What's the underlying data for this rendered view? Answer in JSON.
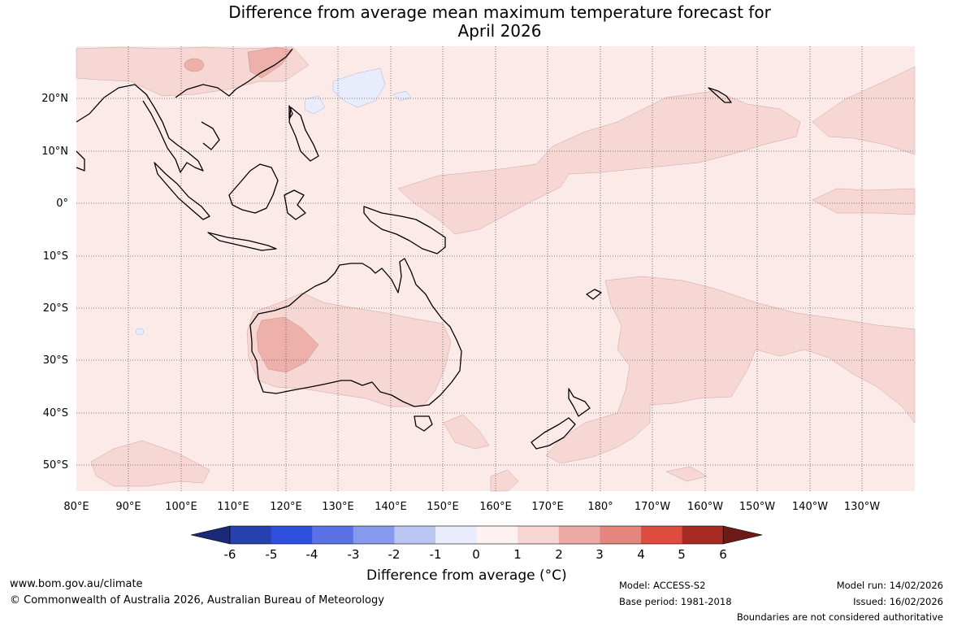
{
  "title": {
    "line1": "Difference from average mean maximum temperature forecast for",
    "line2": "April 2026"
  },
  "map": {
    "lat_labels": [
      "20°N",
      "10°N",
      "0°",
      "10°S",
      "20°S",
      "30°S",
      "40°S",
      "50°S"
    ],
    "lon_labels": [
      "80°E",
      "90°E",
      "100°E",
      "110°E",
      "120°E",
      "130°E",
      "140°E",
      "150°E",
      "160°E",
      "170°E",
      "180°",
      "170°W",
      "160°W",
      "150°W",
      "140°W",
      "130°W"
    ],
    "region": "Australia and surrounding Indo-Pacific",
    "colors": {
      "bin_0_1": "#fbeae8",
      "bin_1_2": "#f7d7d4",
      "bin_2_3": "#eeb0aa",
      "bin_m1_0": "#e8ecfb",
      "land_outline": "#000000"
    }
  },
  "colorbar": {
    "ticks": [
      "-6",
      "-5",
      "-4",
      "-3",
      "-2",
      "-1",
      "0",
      "1",
      "2",
      "3",
      "4",
      "5",
      "6"
    ],
    "colors": [
      "#1b2a78",
      "#2640b0",
      "#2f50de",
      "#5b72e6",
      "#8799ec",
      "#bcc6f3",
      "#e9ecfb",
      "#fdf2f1",
      "#f7d6d3",
      "#eeaba5",
      "#e6857d",
      "#de4c3f",
      "#a82a24",
      "#6e1a16"
    ],
    "label": "Difference from average (°C)"
  },
  "footer": {
    "website": "www.bom.gov.au/climate",
    "copyright": "© Commonwealth of Australia 2026, Australian Bureau of Meteorology",
    "model": "Model: ACCESS-S2",
    "base_period": "Base period: 1981-2018",
    "model_run": "Model run: 14/02/2026",
    "issued": "Issued: 16/02/2026",
    "disclaimer": "Boundaries are not considered authoritative"
  }
}
